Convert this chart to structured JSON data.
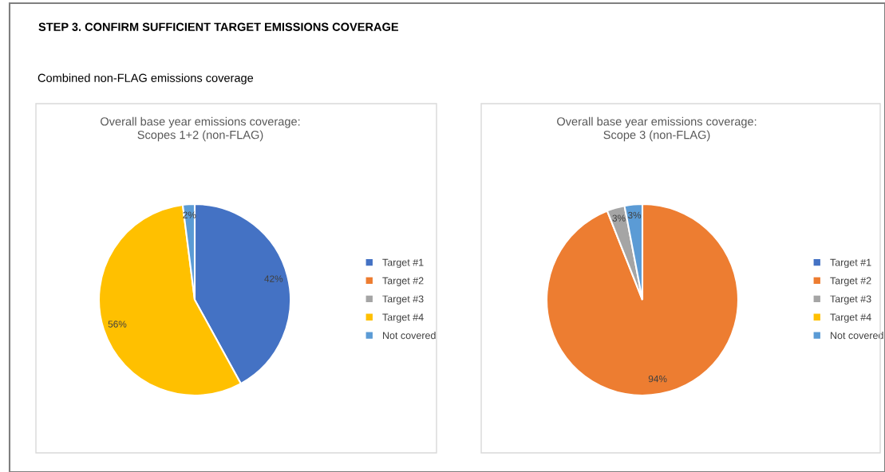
{
  "chart_data": [
    {
      "type": "pie",
      "title": "Overall base year emissions coverage:\nScopes 1+2 (non-FLAG)",
      "annotations": [
        "STEP 3. CONFIRM SUFFICIENT TARGET EMISSIONS COVERAGE",
        "Combined non-FLAG emissions coverage"
      ],
      "categories": [
        "Target #1",
        "Target #2",
        "Target #3",
        "Target #4",
        "Not covered"
      ],
      "values": [
        42,
        0,
        0,
        56,
        2
      ],
      "value_labels": [
        "42%",
        null,
        null,
        "56%",
        "2%"
      ],
      "colors": [
        "#4472c4",
        "#ed7d31",
        "#a5a5a5",
        "#ffc000",
        "#5b9bd5"
      ],
      "legend": "right"
    },
    {
      "type": "pie",
      "title": "Overall base year emissions coverage:\nScope 3 (non-FLAG)",
      "categories": [
        "Target #1",
        "Target #2",
        "Target #3",
        "Target #4",
        "Not covered"
      ],
      "values": [
        0,
        94,
        3,
        0,
        3
      ],
      "value_labels": [
        null,
        "94%",
        "3%",
        null,
        "3%"
      ],
      "colors": [
        "#4472c4",
        "#ed7d31",
        "#a5a5a5",
        "#ffc000",
        "#5b9bd5"
      ],
      "legend": "right"
    }
  ]
}
